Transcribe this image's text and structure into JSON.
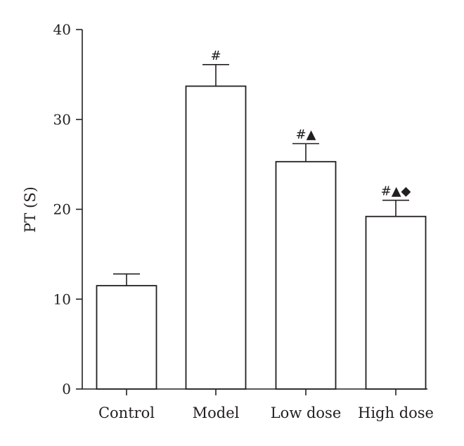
{
  "chart_data": {
    "type": "bar",
    "categories": [
      "Control",
      "Model",
      "Low dose",
      "High dose"
    ],
    "values": [
      11.5,
      33.7,
      25.3,
      19.2
    ],
    "errors": [
      1.3,
      2.4,
      2.0,
      1.8
    ],
    "annotations": [
      "",
      "#",
      "#▲",
      "#▲◆"
    ],
    "title": "",
    "xlabel": "",
    "ylabel": "PT (S)",
    "ylim": [
      0,
      40
    ],
    "yticks": [
      0,
      10,
      20,
      30,
      40
    ],
    "grid": false,
    "colors": {
      "bar_fill": "#ffffff",
      "stroke": "#231f20"
    }
  }
}
